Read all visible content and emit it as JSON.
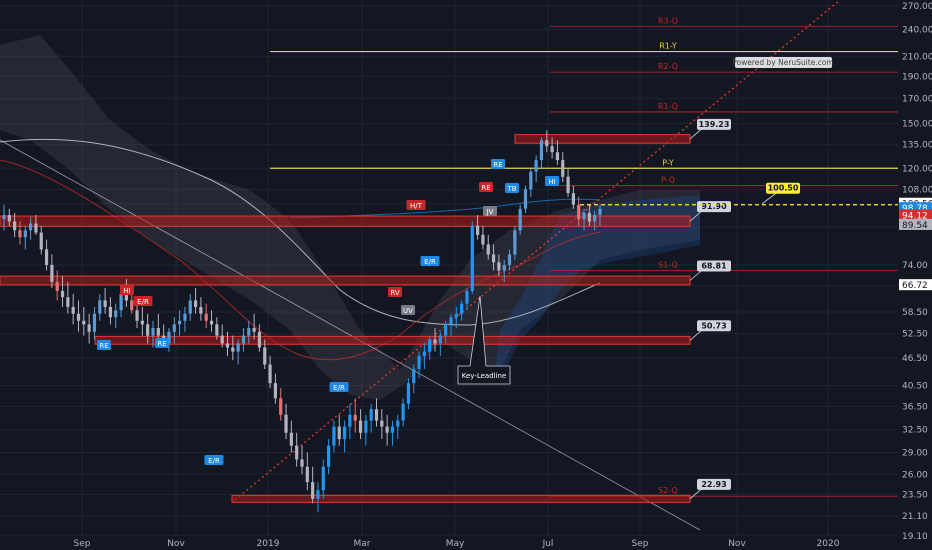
{
  "chart_data": {
    "type": "candlestick",
    "y_scale": "log",
    "ylim": [
      19.1,
      270
    ],
    "y_ticks": [
      "270.00",
      "240.00",
      "210.00",
      "190.00",
      "170.00",
      "150.00",
      "135.00",
      "120.00",
      "108.00",
      "100.50",
      "89.54",
      "74.00",
      "66.72",
      "58.50",
      "52.50",
      "46.50",
      "40.50",
      "36.50",
      "32.50",
      "29.00",
      "26.00",
      "23.50",
      "21.10",
      "19.10"
    ],
    "x_ticks": [
      "Sep",
      "Nov",
      "2019",
      "Mar",
      "May",
      "Jul",
      "Sep",
      "Nov",
      "2020"
    ],
    "watermark": "Powered by NeruSuite.com",
    "levels": [
      {
        "label": "R1-Y",
        "value": 215,
        "kind": "yearly",
        "color": "#e5d24c"
      },
      {
        "label": "P-Y",
        "value": 120,
        "kind": "yearly",
        "color": "#e5d24c"
      },
      {
        "label": "R3-Q",
        "value": 244,
        "kind": "quarterly",
        "color": "#c62828"
      },
      {
        "label": "R2-Q",
        "value": 194,
        "kind": "quarterly",
        "color": "#c62828"
      },
      {
        "label": "R1-Q",
        "value": 159,
        "kind": "quarterly",
        "color": "#c62828"
      },
      {
        "label": "P-Q",
        "value": 110,
        "kind": "quarterly",
        "color": "#c62828"
      },
      {
        "label": "S1-Q",
        "value": 72,
        "kind": "quarterly",
        "color": "#c62828"
      },
      {
        "label": "S2-Q",
        "value": 23.3,
        "kind": "quarterly",
        "color": "#c62828"
      }
    ],
    "zones": [
      {
        "label": "139.23",
        "low": 136,
        "high": 142
      },
      {
        "label": "91.90",
        "low": 89.8,
        "high": 94.5
      },
      {
        "label": "68.81",
        "low": 67.0,
        "high": 70.0
      },
      {
        "label": "50.73",
        "low": 49.8,
        "high": 51.8
      },
      {
        "label": "22.93",
        "low": 22.6,
        "high": 23.4
      }
    ],
    "price_tags": [
      {
        "label": "100.50",
        "value": 100.5,
        "bg": "#ffffff",
        "fg": "#131722"
      },
      {
        "label": "98.78",
        "value": 98.3,
        "bg": "#1e88e5",
        "fg": "#ffffff"
      },
      {
        "label": "94.12",
        "value": 94.8,
        "bg": "#d32f2f",
        "fg": "#ffffff"
      },
      {
        "label": "89.54",
        "value": 90.4,
        "bg": "#b2b5be",
        "fg": "#131722"
      },
      {
        "label": "66.72",
        "value": 66.9,
        "bg": "#ffffff",
        "fg": "#131722"
      }
    ],
    "marker_100": "100.50",
    "annotation": "Key-Leadline",
    "signals": [
      {
        "text": "H/T",
        "color": "#c62828"
      },
      {
        "text": "RV",
        "color": "#c62828"
      },
      {
        "text": "E/R",
        "color": "#c62828"
      },
      {
        "text": "HI",
        "color": "#c62828"
      },
      {
        "text": "RE",
        "color": "#c62828"
      },
      {
        "text": "E/R",
        "color": "#1e88e5"
      },
      {
        "text": "E/R",
        "color": "#1e88e5"
      },
      {
        "text": "E/R",
        "color": "#1e88e5"
      },
      {
        "text": "RE",
        "color": "#1e88e5"
      },
      {
        "text": "RE",
        "color": "#1e88e5"
      },
      {
        "text": "JV",
        "color": "#787b86"
      },
      {
        "text": "UV",
        "color": "#787b86"
      },
      {
        "text": "TB",
        "color": "#1e88e5"
      },
      {
        "text": "HI",
        "color": "#1e88e5"
      },
      {
        "text": "RE",
        "color": "#1e88e5"
      }
    ],
    "candles": [
      [
        93,
        100,
        88,
        95
      ],
      [
        95,
        98,
        90,
        92
      ],
      [
        92,
        96,
        85,
        88
      ],
      [
        88,
        92,
        82,
        85
      ],
      [
        85,
        90,
        80,
        88
      ],
      [
        88,
        94,
        84,
        91
      ],
      [
        91,
        95,
        86,
        87
      ],
      [
        87,
        90,
        78,
        80
      ],
      [
        80,
        84,
        72,
        74
      ],
      [
        74,
        78,
        66,
        68
      ],
      [
        68,
        72,
        62,
        65
      ],
      [
        65,
        70,
        60,
        63
      ],
      [
        63,
        68,
        58,
        60
      ],
      [
        60,
        64,
        55,
        58
      ],
      [
        58,
        62,
        53,
        56
      ],
      [
        56,
        60,
        52,
        55
      ],
      [
        55,
        58,
        50,
        53
      ],
      [
        53,
        60,
        51,
        58
      ],
      [
        58,
        64,
        56,
        62
      ],
      [
        62,
        66,
        58,
        60
      ],
      [
        60,
        63,
        55,
        57
      ],
      [
        57,
        61,
        54,
        59
      ],
      [
        59,
        66,
        57,
        64
      ],
      [
        64,
        69,
        60,
        62
      ],
      [
        62,
        66,
        58,
        59
      ],
      [
        59,
        62,
        54,
        56
      ],
      [
        56,
        60,
        52,
        55
      ],
      [
        55,
        58,
        50,
        52
      ],
      [
        52,
        56,
        49,
        54
      ],
      [
        54,
        58,
        51,
        52
      ],
      [
        52,
        55,
        49,
        50
      ],
      [
        50,
        54,
        48,
        53
      ],
      [
        53,
        57,
        50,
        55
      ],
      [
        55,
        59,
        52,
        56
      ],
      [
        56,
        60,
        53,
        58
      ],
      [
        58,
        64,
        56,
        62
      ],
      [
        62,
        66,
        58,
        60
      ],
      [
        60,
        63,
        56,
        58
      ],
      [
        58,
        61,
        54,
        56
      ],
      [
        56,
        59,
        53,
        55
      ],
      [
        55,
        57,
        51,
        52
      ],
      [
        52,
        55,
        49,
        50
      ],
      [
        50,
        53,
        47,
        49
      ],
      [
        49,
        52,
        46,
        48
      ],
      [
        48,
        51,
        45,
        50
      ],
      [
        50,
        54,
        48,
        52
      ],
      [
        52,
        56,
        50,
        54
      ],
      [
        54,
        58,
        51,
        53
      ],
      [
        53,
        55,
        48,
        49
      ],
      [
        49,
        51,
        44,
        45
      ],
      [
        45,
        47,
        40,
        41
      ],
      [
        41,
        43,
        37,
        38
      ],
      [
        38,
        40,
        34,
        35
      ],
      [
        35,
        37,
        31,
        32
      ],
      [
        32,
        34,
        29,
        30
      ],
      [
        30,
        32,
        27,
        28
      ],
      [
        28,
        30,
        26,
        27
      ],
      [
        27,
        29,
        24,
        25
      ],
      [
        25,
        27,
        22.5,
        23
      ],
      [
        23,
        25,
        21.5,
        24
      ],
      [
        24,
        28,
        23,
        27
      ],
      [
        27,
        31,
        26,
        30
      ],
      [
        30,
        34,
        29,
        33
      ],
      [
        33,
        35,
        30,
        31
      ],
      [
        31,
        34,
        29,
        33
      ],
      [
        33,
        37,
        31,
        35
      ],
      [
        35,
        38,
        32,
        34
      ],
      [
        34,
        36,
        31,
        32
      ],
      [
        32,
        35,
        30,
        34
      ],
      [
        34,
        37,
        32,
        36
      ],
      [
        36,
        38,
        33,
        34
      ],
      [
        34,
        36,
        31,
        33
      ],
      [
        33,
        35,
        30,
        32
      ],
      [
        32,
        34,
        30,
        33
      ],
      [
        33,
        35,
        31,
        34
      ],
      [
        34,
        38,
        33,
        37
      ],
      [
        37,
        42,
        36,
        41
      ],
      [
        41,
        45,
        39,
        44
      ],
      [
        44,
        48,
        42,
        47
      ],
      [
        47,
        50,
        44,
        48
      ],
      [
        48,
        52,
        46,
        51
      ],
      [
        51,
        54,
        48,
        50
      ],
      [
        50,
        53,
        47,
        52
      ],
      [
        52,
        56,
        50,
        55
      ],
      [
        55,
        58,
        52,
        57
      ],
      [
        57,
        60,
        54,
        58
      ],
      [
        58,
        62,
        56,
        61
      ],
      [
        61,
        66,
        59,
        65
      ],
      [
        65,
        92,
        64,
        90
      ],
      [
        90,
        95,
        84,
        86
      ],
      [
        86,
        90,
        80,
        82
      ],
      [
        82,
        86,
        76,
        78
      ],
      [
        78,
        82,
        72,
        75
      ],
      [
        75,
        78,
        70,
        72
      ],
      [
        72,
        76,
        68,
        74
      ],
      [
        74,
        80,
        72,
        78
      ],
      [
        78,
        90,
        76,
        88
      ],
      [
        88,
        100,
        86,
        98
      ],
      [
        98,
        110,
        96,
        108
      ],
      [
        108,
        120,
        104,
        118
      ],
      [
        118,
        128,
        112,
        125
      ],
      [
        125,
        140,
        120,
        138
      ],
      [
        138,
        145,
        130,
        134
      ],
      [
        134,
        140,
        126,
        130
      ],
      [
        130,
        138,
        122,
        125
      ],
      [
        125,
        130,
        112,
        115
      ],
      [
        115,
        120,
        104,
        106
      ],
      [
        106,
        110,
        98,
        100
      ],
      [
        100,
        104,
        90,
        93
      ],
      [
        93,
        98,
        88,
        96
      ],
      [
        96,
        100,
        90,
        92
      ],
      [
        92,
        97,
        88,
        95
      ],
      [
        95,
        100,
        90,
        98
      ]
    ]
  }
}
